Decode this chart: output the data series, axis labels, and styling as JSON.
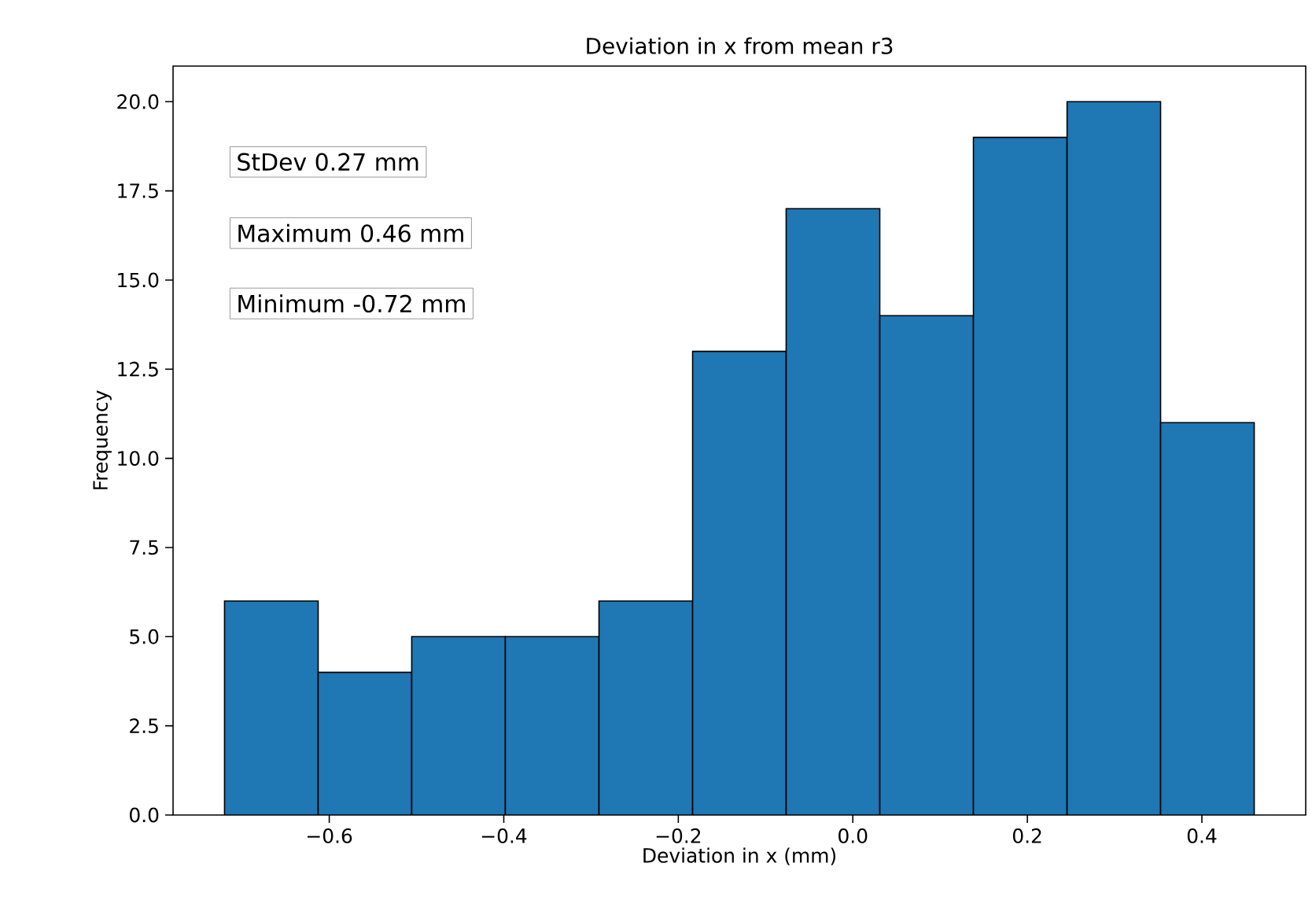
{
  "chart_data": {
    "type": "histogram",
    "title": "Deviation in x from mean r3",
    "xlabel": "Deviation in x (mm)",
    "ylabel": "Frequency",
    "bins": [
      -0.72,
      -0.6127,
      -0.5055,
      -0.3982,
      -0.2909,
      -0.1836,
      -0.0764,
      0.0309,
      0.1382,
      0.2455,
      0.3527,
      0.46
    ],
    "values": [
      6,
      4,
      5,
      5,
      6,
      13,
      17,
      14,
      19,
      20,
      11
    ],
    "color": "#1f77b4",
    "xlim": [
      -0.779,
      0.519
    ],
    "ylim": [
      0,
      21
    ],
    "xticks": [
      {
        "value": -0.6,
        "label": "−0.6"
      },
      {
        "value": -0.4,
        "label": "−0.4"
      },
      {
        "value": -0.2,
        "label": "−0.2"
      },
      {
        "value": 0,
        "label": "0.0"
      },
      {
        "value": 0.2,
        "label": "0.2"
      },
      {
        "value": 0.4,
        "label": "0.4"
      }
    ],
    "yticks": [
      {
        "value": 0,
        "label": "0.0"
      },
      {
        "value": 2.5,
        "label": "2.5"
      },
      {
        "value": 5,
        "label": "5.0"
      },
      {
        "value": 7.5,
        "label": "7.5"
      },
      {
        "value": 10,
        "label": "10.0"
      },
      {
        "value": 12.5,
        "label": "12.5"
      },
      {
        "value": 15,
        "label": "15.0"
      },
      {
        "value": 17.5,
        "label": "17.5"
      },
      {
        "value": 20,
        "label": "20.0"
      }
    ],
    "annotations": [
      "StDev 0.27 mm",
      "Maximum 0.46 mm",
      "Minimum -0.72 mm"
    ]
  }
}
